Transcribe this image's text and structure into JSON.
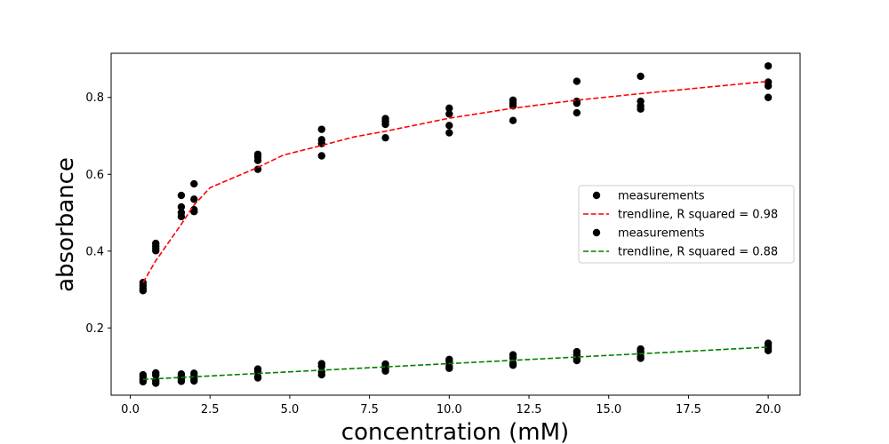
{
  "chart_data": {
    "type": "scatter",
    "title": "",
    "xlabel": "concentration (mM)",
    "ylabel": "absorbance",
    "xlim": [
      -0.6,
      21.0
    ],
    "ylim": [
      0.025,
      0.915
    ],
    "xticks": [
      0.0,
      2.5,
      5.0,
      7.5,
      10.0,
      12.5,
      15.0,
      17.5,
      20.0
    ],
    "xtick_labels": [
      "0.0",
      "2.5",
      "5.0",
      "7.5",
      "10.0",
      "12.5",
      "15.0",
      "17.5",
      "20.0"
    ],
    "yticks": [
      0.2,
      0.4,
      0.6,
      0.8
    ],
    "ytick_labels": [
      "0.2",
      "0.4",
      "0.6",
      "0.8"
    ],
    "grid": false,
    "legend_position": "center-right",
    "series": [
      {
        "name": "measurements",
        "kind": "scatter",
        "color": "#000000",
        "points": [
          [
            0.4,
            0.318
          ],
          [
            0.4,
            0.31
          ],
          [
            0.4,
            0.302
          ],
          [
            0.4,
            0.297
          ],
          [
            0.8,
            0.42
          ],
          [
            0.8,
            0.413
          ],
          [
            0.8,
            0.407
          ],
          [
            0.8,
            0.401
          ],
          [
            1.6,
            0.545
          ],
          [
            1.6,
            0.515
          ],
          [
            1.6,
            0.5
          ],
          [
            1.6,
            0.49
          ],
          [
            2.0,
            0.575
          ],
          [
            2.0,
            0.535
          ],
          [
            2.0,
            0.508
          ],
          [
            2.0,
            0.503
          ],
          [
            4.0,
            0.652
          ],
          [
            4.0,
            0.645
          ],
          [
            4.0,
            0.636
          ],
          [
            4.0,
            0.613
          ],
          [
            6.0,
            0.717
          ],
          [
            6.0,
            0.69
          ],
          [
            6.0,
            0.68
          ],
          [
            6.0,
            0.648
          ],
          [
            8.0,
            0.745
          ],
          [
            8.0,
            0.738
          ],
          [
            8.0,
            0.73
          ],
          [
            8.0,
            0.695
          ],
          [
            10.0,
            0.772
          ],
          [
            10.0,
            0.757
          ],
          [
            10.0,
            0.727
          ],
          [
            10.0,
            0.708
          ],
          [
            12.0,
            0.793
          ],
          [
            12.0,
            0.785
          ],
          [
            12.0,
            0.778
          ],
          [
            12.0,
            0.74
          ],
          [
            14.0,
            0.842
          ],
          [
            14.0,
            0.79
          ],
          [
            14.0,
            0.785
          ],
          [
            14.0,
            0.76
          ],
          [
            16.0,
            0.855
          ],
          [
            16.0,
            0.79
          ],
          [
            16.0,
            0.778
          ],
          [
            16.0,
            0.77
          ],
          [
            20.0,
            0.882
          ],
          [
            20.0,
            0.84
          ],
          [
            20.0,
            0.83
          ],
          [
            20.0,
            0.8
          ]
        ]
      },
      {
        "name": "trendline, R squared = 0.98",
        "kind": "line",
        "color": "#ff0000",
        "dashed": true,
        "x": [
          0.4,
          0.8,
          1.6,
          2.0,
          2.5,
          4.0,
          4.8,
          6.0,
          7.0,
          8.0,
          10.0,
          12.0,
          14.0,
          16.0,
          18.0,
          20.0
        ],
        "y": [
          0.318,
          0.375,
          0.47,
          0.52,
          0.565,
          0.618,
          0.65,
          0.675,
          0.697,
          0.712,
          0.746,
          0.772,
          0.793,
          0.81,
          0.826,
          0.842
        ]
      },
      {
        "name": "measurements",
        "kind": "scatter",
        "color": "#000000",
        "points": [
          [
            0.4,
            0.078
          ],
          [
            0.4,
            0.072
          ],
          [
            0.4,
            0.066
          ],
          [
            0.4,
            0.06
          ],
          [
            0.8,
            0.083
          ],
          [
            0.8,
            0.077
          ],
          [
            0.8,
            0.062
          ],
          [
            0.8,
            0.056
          ],
          [
            1.6,
            0.08
          ],
          [
            1.6,
            0.074
          ],
          [
            1.6,
            0.068
          ],
          [
            1.6,
            0.061
          ],
          [
            2.0,
            0.082
          ],
          [
            2.0,
            0.075
          ],
          [
            2.0,
            0.068
          ],
          [
            2.0,
            0.062
          ],
          [
            4.0,
            0.093
          ],
          [
            4.0,
            0.087
          ],
          [
            4.0,
            0.073
          ],
          [
            4.0,
            0.07
          ],
          [
            6.0,
            0.107
          ],
          [
            6.0,
            0.1
          ],
          [
            6.0,
            0.086
          ],
          [
            6.0,
            0.078
          ],
          [
            8.0,
            0.106
          ],
          [
            8.0,
            0.1
          ],
          [
            8.0,
            0.094
          ],
          [
            8.0,
            0.088
          ],
          [
            10.0,
            0.118
          ],
          [
            10.0,
            0.113
          ],
          [
            10.0,
            0.1
          ],
          [
            10.0,
            0.095
          ],
          [
            12.0,
            0.13
          ],
          [
            12.0,
            0.122
          ],
          [
            12.0,
            0.108
          ],
          [
            12.0,
            0.103
          ],
          [
            14.0,
            0.138
          ],
          [
            14.0,
            0.13
          ],
          [
            14.0,
            0.12
          ],
          [
            14.0,
            0.115
          ],
          [
            16.0,
            0.145
          ],
          [
            16.0,
            0.138
          ],
          [
            16.0,
            0.126
          ],
          [
            16.0,
            0.121
          ],
          [
            20.0,
            0.16
          ],
          [
            20.0,
            0.154
          ],
          [
            20.0,
            0.147
          ],
          [
            20.0,
            0.141
          ]
        ]
      },
      {
        "name": "trendline, R squared = 0.88",
        "kind": "line",
        "color": "#008000",
        "dashed": true,
        "x": [
          0.4,
          20.0
        ],
        "y": [
          0.066,
          0.15
        ]
      }
    ]
  }
}
